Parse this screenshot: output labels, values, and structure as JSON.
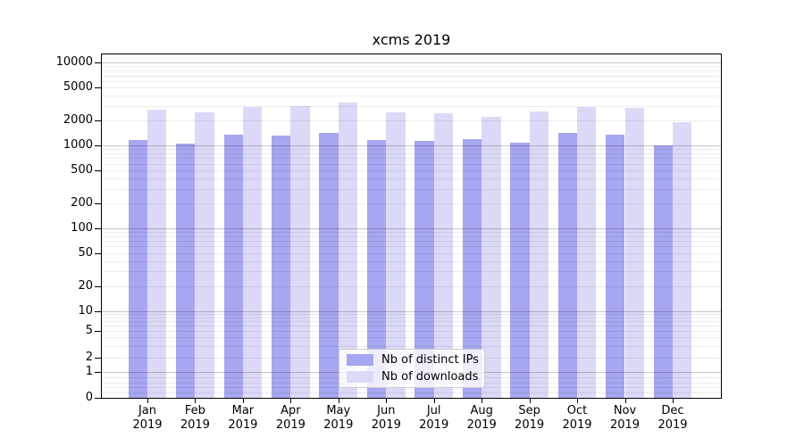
{
  "chart_data": {
    "type": "bar",
    "title": "xcms 2019",
    "categories": [
      "Jan",
      "Feb",
      "Mar",
      "Apr",
      "May",
      "Jun",
      "Jul",
      "Aug",
      "Sep",
      "Oct",
      "Nov",
      "Dec"
    ],
    "category_year": "2019",
    "series": [
      {
        "name": "Nb of distinct IPs",
        "color": "#a6a6f1",
        "values": [
          1160,
          1060,
          1350,
          1300,
          1410,
          1170,
          1140,
          1190,
          1090,
          1400,
          1350,
          1010
        ]
      },
      {
        "name": "Nb of downloads",
        "color": "#dadaf8",
        "values": [
          2700,
          2480,
          2900,
          3000,
          3300,
          2520,
          2450,
          2230,
          2540,
          2890,
          2850,
          1890
        ]
      }
    ],
    "y_axis": {
      "scale": "symlog",
      "ticks": [
        0,
        1,
        2,
        5,
        10,
        20,
        50,
        100,
        200,
        500,
        1000,
        2000,
        5000,
        10000
      ],
      "major_gridline_values": [
        1,
        10,
        100,
        1000,
        10000
      ],
      "range": [
        0,
        12000
      ]
    },
    "grid": {
      "on": true,
      "major_color": "#c7c7c7",
      "minor_color": "#ededed"
    },
    "legend": {
      "position": "lower-center",
      "border_color": "#cccccc"
    },
    "colors": {
      "axis": "#000000",
      "background": "#ffffff"
    }
  }
}
